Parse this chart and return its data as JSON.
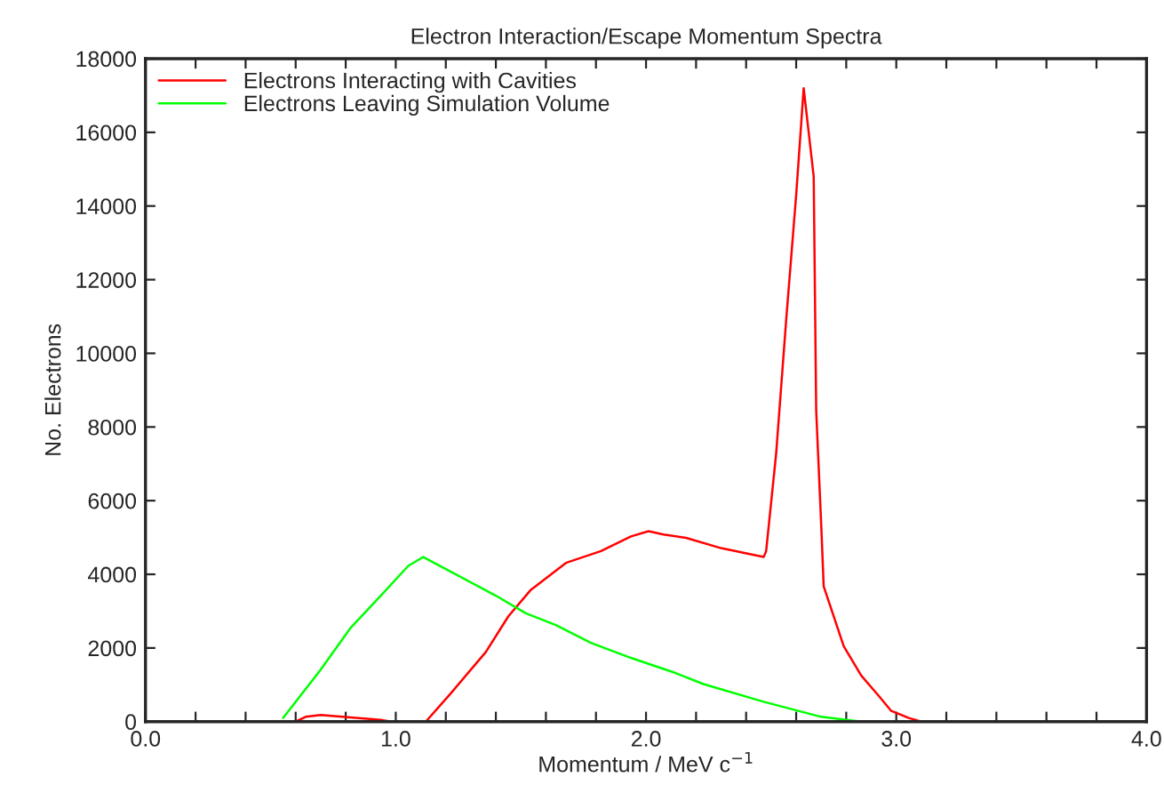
{
  "chart_data": {
    "type": "line",
    "title": "Electron Interaction/Escape Momentum Spectra",
    "xlabel": "Momentum / MeV c$^{−1}$",
    "ylabel": "No. Electrons",
    "xlim": [
      0,
      4
    ],
    "xticks": [
      {
        "value": 0,
        "label": "0.0"
      },
      {
        "value": 0.2,
        "label": null
      },
      {
        "value": 0.4,
        "label": null
      },
      {
        "value": 0.6,
        "label": null
      },
      {
        "value": 0.8,
        "label": null
      },
      {
        "value": 1,
        "label": "1.0"
      },
      {
        "value": 1.2,
        "label": null
      },
      {
        "value": 1.4,
        "label": null
      },
      {
        "value": 1.6,
        "label": null
      },
      {
        "value": 1.8,
        "label": null
      },
      {
        "value": 2,
        "label": "2.0"
      },
      {
        "value": 2.2,
        "label": null
      },
      {
        "value": 2.4,
        "label": null
      },
      {
        "value": 2.6,
        "label": null
      },
      {
        "value": 2.8,
        "label": null
      },
      {
        "value": 3,
        "label": "3.0"
      },
      {
        "value": 3.2,
        "label": null
      },
      {
        "value": 3.4,
        "label": null
      },
      {
        "value": 3.6,
        "label": null
      },
      {
        "value": 3.8,
        "label": null
      },
      {
        "value": 4,
        "label": "4.0"
      }
    ],
    "ylim": [
      0,
      18000
    ],
    "yticks": [
      0,
      2000,
      4000,
      6000,
      8000,
      10000,
      12000,
      14000,
      16000,
      18000
    ],
    "grid": false,
    "legend": "top left",
    "marker": "none",
    "line_style": "solid",
    "series": [
      {
        "name": "Electrons Interacting with Cavities",
        "color": "#ff0000",
        "x": [
          0.6,
          0.64,
          0.7,
          0.94,
          0.98,
          1.12,
          1.22,
          1.36,
          1.45,
          1.54,
          1.68,
          1.82,
          1.94,
          2.01,
          2.07,
          2.16,
          2.3,
          2.47,
          2.48,
          2.52,
          2.56,
          2.6,
          2.63,
          2.67,
          2.68,
          2.7,
          2.71,
          2.79,
          2.86,
          2.93,
          2.98,
          3.05,
          3.1
        ],
        "values": [
          0,
          130,
          180,
          50,
          0,
          0,
          770,
          1890,
          2860,
          3580,
          4310,
          4630,
          5030,
          5170,
          5080,
          4990,
          4710,
          4470,
          4630,
          7280,
          10900,
          14300,
          17200,
          14800,
          8450,
          5350,
          3670,
          2050,
          1250,
          700,
          290,
          100,
          0
        ]
      },
      {
        "name": "Electrons Leaving Simulation Volume",
        "color": "#00ff00",
        "x": [
          0.55,
          0.7,
          0.82,
          0.94,
          1.05,
          1.11,
          1.22,
          1.4,
          1.52,
          1.64,
          1.78,
          1.94,
          2.11,
          2.23,
          2.47,
          2.7,
          2.86
        ],
        "values": [
          100,
          1410,
          2550,
          3420,
          4230,
          4470,
          4070,
          3420,
          2940,
          2620,
          2140,
          1730,
          1340,
          1020,
          540,
          130,
          0
        ]
      }
    ]
  }
}
